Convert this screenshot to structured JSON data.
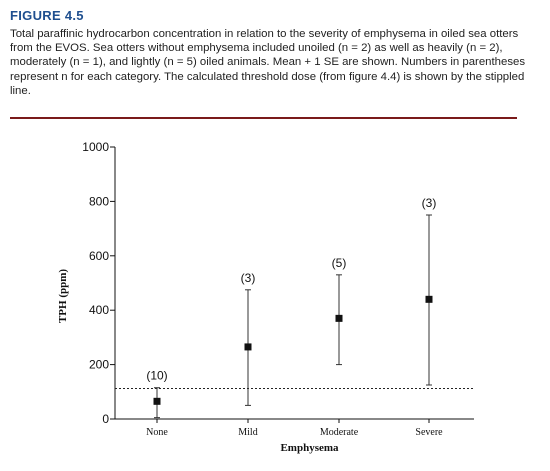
{
  "figure": {
    "title": "FIGURE 4.5",
    "caption": "Total paraffinic hydrocarbon concentration in relation to the severity of emphysema in oiled sea otters from the EVOS. Sea otters without emphysema included unoiled (n = 2) as well as heavily (n = 2), moderately (n = 1), and lightly (n = 5) oiled animals. Mean + 1 SE are shown. Numbers in parentheses represent n for each category. The calculated threshold dose (from figure 4.4) is shown by the stippled line."
  },
  "chart_data": {
    "type": "scatter",
    "xlabel": "Emphysema",
    "ylabel": "TPH (ppm)",
    "ylim": [
      0,
      1000
    ],
    "yticks": [
      0,
      200,
      400,
      600,
      800,
      1000
    ],
    "ytick_labels": [
      "0",
      "200",
      "400",
      "600",
      "800",
      "1000"
    ],
    "grid": false,
    "categories": [
      "None",
      "Mild",
      "Moderate",
      "Severe"
    ],
    "mean": [
      65,
      265,
      370,
      440
    ],
    "error_low": [
      5,
      50,
      200,
      125
    ],
    "error_high": [
      115,
      475,
      530,
      750
    ],
    "n_labels": [
      "(10)",
      "(3)",
      "(5)",
      "(3)"
    ],
    "threshold": 112,
    "colors": {
      "marker": "#111111",
      "axis": "#111111"
    }
  }
}
